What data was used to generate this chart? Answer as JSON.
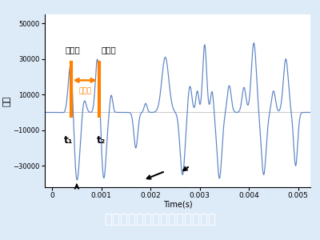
{
  "title": "鋼製防護柵の根入れ長さの測定",
  "xlabel": "Time(s)",
  "ylabel": "速度",
  "xlim": [
    -0.00015,
    0.00525
  ],
  "ylim": [
    -42000,
    55000
  ],
  "yticks": [
    -30000,
    -10000,
    10000,
    30000,
    50000
  ],
  "xticks": [
    0,
    0.001,
    0.002,
    0.003,
    0.004,
    0.005
  ],
  "line_color": "#5B84C4",
  "orange_color": "#FF8000",
  "plot_bg": "#FFFFFF",
  "fig_bg": "#DDEAF8",
  "title_bg": "#1A6FBF",
  "title_fg": "#FFFFFF",
  "t1": 0.00038,
  "t2": 0.00095,
  "label_wave1": "第１波",
  "label_wave2": "第２波",
  "label_jikan": "時間差"
}
